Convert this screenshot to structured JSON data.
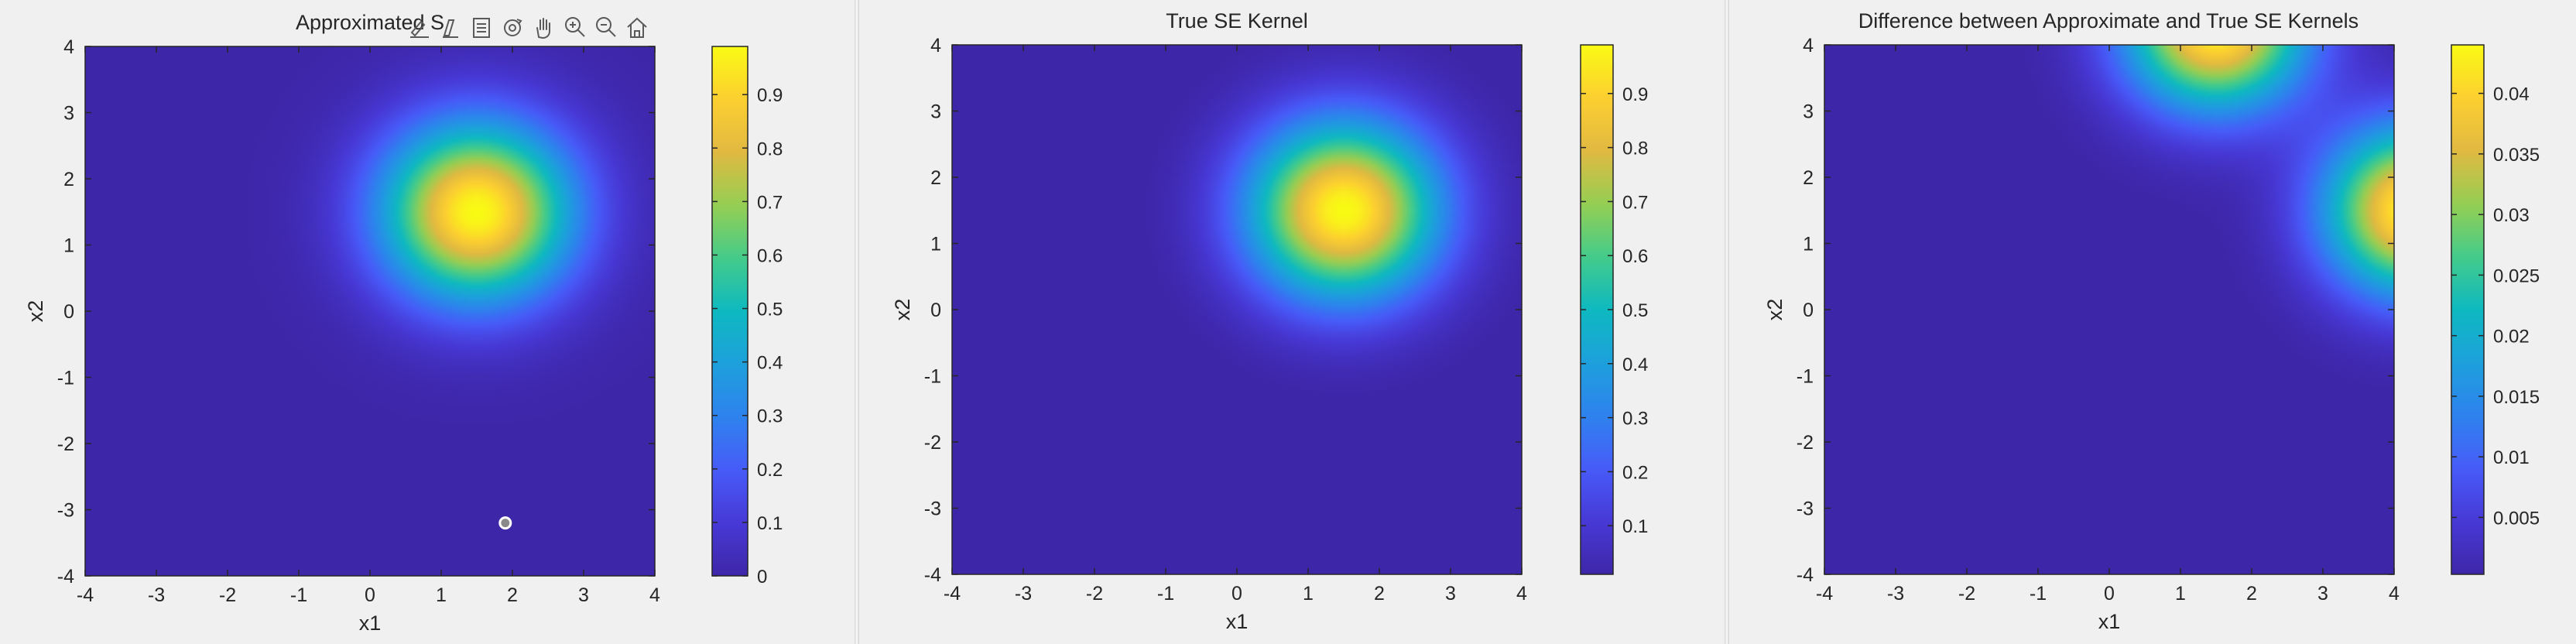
{
  "chart_data": [
    {
      "type": "heatmap",
      "title": "Approximated S",
      "xlabel": "x1",
      "ylabel": "x2",
      "xlim": [
        -4,
        4
      ],
      "ylim": [
        -4,
        4
      ],
      "x_ticks": [
        "-4",
        "-3",
        "-2",
        "-1",
        "0",
        "1",
        "2",
        "3",
        "4"
      ],
      "y_ticks": [
        "-4",
        "-3",
        "-2",
        "-1",
        "0",
        "1",
        "2",
        "3",
        "4"
      ],
      "colormap": "parula",
      "colorbar": {
        "range": [
          0,
          0.99
        ],
        "ticks": [
          0,
          0.1,
          0.2,
          0.3,
          0.4,
          0.5,
          0.6,
          0.7,
          0.8,
          0.9
        ],
        "tick_labels": [
          "0",
          "0.1",
          "0.2",
          "0.3",
          "0.4",
          "0.5",
          "0.6",
          "0.7",
          "0.8",
          "0.9"
        ]
      },
      "field": {
        "kind": "gaussian",
        "peak": [
          1.5,
          1.5
        ],
        "amplitude": 0.99,
        "length_scale": 0.95
      },
      "marker": {
        "x": 1.9,
        "y": -3.2
      }
    },
    {
      "type": "heatmap",
      "title": "True SE Kernel",
      "xlabel": "x1",
      "ylabel": "x2",
      "xlim": [
        -4,
        4
      ],
      "ylim": [
        -4,
        4
      ],
      "x_ticks": [
        "-4",
        "-3",
        "-2",
        "-1",
        "0",
        "1",
        "2",
        "3",
        "4"
      ],
      "y_ticks": [
        "-4",
        "-3",
        "-2",
        "-1",
        "0",
        "1",
        "2",
        "3",
        "4"
      ],
      "colormap": "parula",
      "colorbar": {
        "range": [
          0.01,
          0.99
        ],
        "ticks": [
          0.1,
          0.2,
          0.3,
          0.4,
          0.5,
          0.6,
          0.7,
          0.8,
          0.9
        ],
        "tick_labels": [
          "0.1",
          "0.2",
          "0.3",
          "0.4",
          "0.5",
          "0.6",
          "0.7",
          "0.8",
          "0.9"
        ]
      },
      "field": {
        "kind": "gaussian",
        "peak": [
          1.5,
          1.5
        ],
        "amplitude": 0.99,
        "length_scale": 0.95
      }
    },
    {
      "type": "heatmap",
      "title": "Difference between Approximate and True SE Kernels",
      "xlabel": "x1",
      "ylabel": "x2",
      "xlim": [
        -4,
        4
      ],
      "ylim": [
        -4,
        4
      ],
      "x_ticks": [
        "-4",
        "-3",
        "-2",
        "-1",
        "0",
        "1",
        "2",
        "3",
        "4"
      ],
      "y_ticks": [
        "-4",
        "-3",
        "-2",
        "-1",
        "0",
        "1",
        "2",
        "3",
        "4"
      ],
      "colormap": "parula",
      "colorbar": {
        "range": [
          0.0003,
          0.044
        ],
        "ticks": [
          0.005,
          0.01,
          0.015,
          0.02,
          0.025,
          0.03,
          0.035,
          0.04
        ],
        "tick_labels": [
          "0.005",
          "0.01",
          "0.015",
          "0.02",
          "0.025",
          "0.03",
          "0.035",
          "0.04"
        ]
      },
      "field": {
        "kind": "difference",
        "blobs": [
          {
            "x": 1.5,
            "y": 4.3,
            "amplitude": 0.044,
            "length_scale": 0.9
          },
          {
            "x": 4.3,
            "y": 1.5,
            "amplitude": 0.044,
            "length_scale": 0.9
          }
        ]
      }
    }
  ],
  "toolbar": {
    "icons": [
      "brush-icon",
      "data-tips-icon",
      "legend-icon",
      "rotate-icon",
      "pan-icon",
      "zoom-in-icon",
      "zoom-out-icon",
      "home-icon"
    ]
  },
  "colors": {
    "background": "#f0f0f0",
    "axis": "#262626"
  }
}
